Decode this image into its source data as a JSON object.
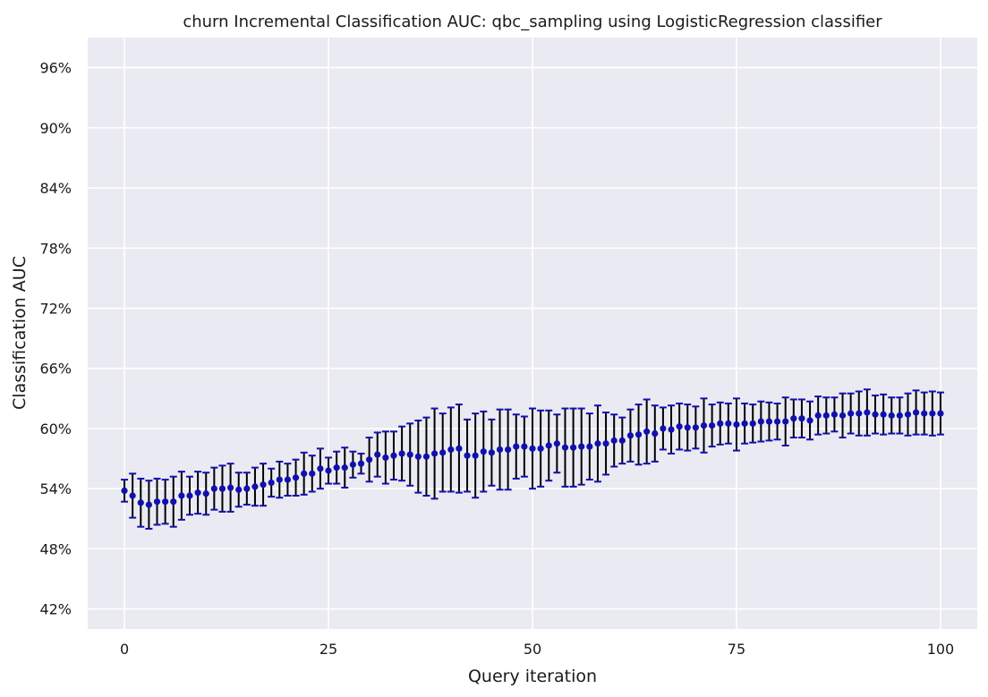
{
  "chart_data": {
    "type": "scatter",
    "title": "churn Incremental Classification AUC: qbc_sampling using LogisticRegression classifier",
    "xlabel": "Query iteration",
    "ylabel": "Classification AUC",
    "xlim": [
      -4.5,
      104.5
    ],
    "ylim": [
      0.4,
      0.99
    ],
    "xticks": [
      0,
      25,
      50,
      75,
      100
    ],
    "yticks": [
      0.42,
      0.48,
      0.54,
      0.6,
      0.66,
      0.72,
      0.78,
      0.84,
      0.9,
      0.96
    ],
    "ytick_labels": [
      "42%",
      "48%",
      "54%",
      "60%",
      "66%",
      "72%",
      "78%",
      "84%",
      "90%",
      "96%"
    ],
    "grid": true,
    "background": "#eaeaf2",
    "marker_color": "#1010b0",
    "errorbar_color": "#000000",
    "x": [
      0,
      1,
      2,
      3,
      4,
      5,
      6,
      7,
      8,
      9,
      10,
      11,
      12,
      13,
      14,
      15,
      16,
      17,
      18,
      19,
      20,
      21,
      22,
      23,
      24,
      25,
      26,
      27,
      28,
      29,
      30,
      31,
      32,
      33,
      34,
      35,
      36,
      37,
      38,
      39,
      40,
      41,
      42,
      43,
      44,
      45,
      46,
      47,
      48,
      49,
      50,
      51,
      52,
      53,
      54,
      55,
      56,
      57,
      58,
      59,
      60,
      61,
      62,
      63,
      64,
      65,
      66,
      67,
      68,
      69,
      70,
      71,
      72,
      73,
      74,
      75,
      76,
      77,
      78,
      79,
      80,
      81,
      82,
      83,
      84,
      85,
      86,
      87,
      88,
      89,
      90,
      91,
      92,
      93,
      94,
      95,
      96,
      97,
      98,
      99,
      100
    ],
    "y": [
      0.538,
      0.533,
      0.526,
      0.524,
      0.527,
      0.527,
      0.527,
      0.533,
      0.533,
      0.536,
      0.535,
      0.54,
      0.54,
      0.541,
      0.539,
      0.54,
      0.542,
      0.544,
      0.546,
      0.549,
      0.549,
      0.551,
      0.555,
      0.555,
      0.56,
      0.558,
      0.561,
      0.561,
      0.564,
      0.565,
      0.569,
      0.574,
      0.571,
      0.573,
      0.575,
      0.574,
      0.572,
      0.572,
      0.575,
      0.576,
      0.579,
      0.58,
      0.573,
      0.573,
      0.577,
      0.576,
      0.579,
      0.579,
      0.582,
      0.582,
      0.58,
      0.58,
      0.583,
      0.585,
      0.581,
      0.581,
      0.582,
      0.582,
      0.585,
      0.585,
      0.588,
      0.588,
      0.593,
      0.594,
      0.597,
      0.595,
      0.6,
      0.599,
      0.602,
      0.601,
      0.601,
      0.603,
      0.603,
      0.605,
      0.605,
      0.604,
      0.605,
      0.605,
      0.607,
      0.607,
      0.607,
      0.607,
      0.61,
      0.61,
      0.608,
      0.613,
      0.613,
      0.614,
      0.613,
      0.615,
      0.615,
      0.616,
      0.614,
      0.614,
      0.613,
      0.613,
      0.614,
      0.616,
      0.615,
      0.615,
      0.615
    ],
    "yerr": [
      0.011,
      0.022,
      0.024,
      0.024,
      0.023,
      0.022,
      0.025,
      0.024,
      0.019,
      0.021,
      0.021,
      0.021,
      0.023,
      0.024,
      0.017,
      0.016,
      0.019,
      0.021,
      0.014,
      0.018,
      0.016,
      0.018,
      0.021,
      0.018,
      0.02,
      0.013,
      0.016,
      0.02,
      0.013,
      0.01,
      0.022,
      0.022,
      0.026,
      0.024,
      0.027,
      0.031,
      0.036,
      0.039,
      0.045,
      0.039,
      0.042,
      0.044,
      0.036,
      0.042,
      0.04,
      0.033,
      0.04,
      0.04,
      0.032,
      0.03,
      0.04,
      0.038,
      0.035,
      0.029,
      0.039,
      0.039,
      0.038,
      0.033,
      0.038,
      0.031,
      0.026,
      0.023,
      0.026,
      0.03,
      0.032,
      0.028,
      0.021,
      0.024,
      0.023,
      0.023,
      0.021,
      0.027,
      0.021,
      0.021,
      0.02,
      0.026,
      0.02,
      0.019,
      0.02,
      0.019,
      0.018,
      0.024,
      0.019,
      0.019,
      0.019,
      0.019,
      0.018,
      0.017,
      0.022,
      0.02,
      0.022,
      0.023,
      0.019,
      0.02,
      0.018,
      0.018,
      0.021,
      0.022,
      0.021,
      0.022,
      0.021
    ]
  }
}
